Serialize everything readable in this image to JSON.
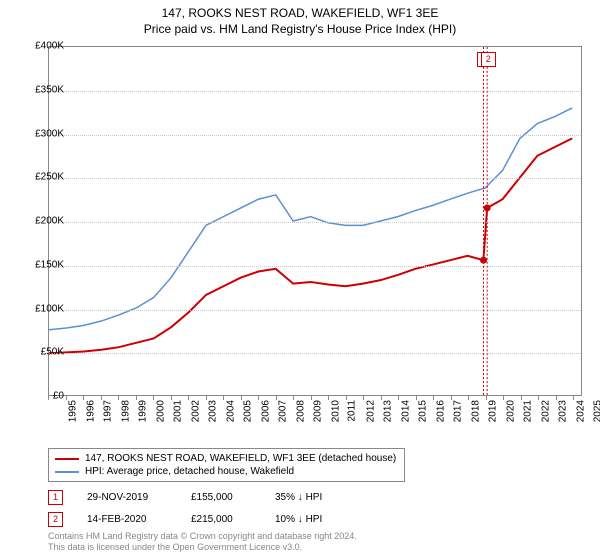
{
  "title_line1": "147, ROOKS NEST ROAD, WAKEFIELD, WF1 3EE",
  "title_line2": "Price paid vs. HM Land Registry's House Price Index (HPI)",
  "chart": {
    "type": "line",
    "background_color": "#ffffff",
    "grid_color": "#c8c8c8",
    "axis_color": "#888888",
    "label_fontsize": 10,
    "title_fontsize": 12,
    "xlim": [
      1995,
      2025.5
    ],
    "ylim": [
      0,
      400000
    ],
    "ytick_step": 50000,
    "yticks": [
      {
        "v": 0,
        "label": "£0"
      },
      {
        "v": 50000,
        "label": "£50K"
      },
      {
        "v": 100000,
        "label": "£100K"
      },
      {
        "v": 150000,
        "label": "£150K"
      },
      {
        "v": 200000,
        "label": "£200K"
      },
      {
        "v": 250000,
        "label": "£250K"
      },
      {
        "v": 300000,
        "label": "£300K"
      },
      {
        "v": 350000,
        "label": "£350K"
      },
      {
        "v": 400000,
        "label": "£400K"
      }
    ],
    "xticks": [
      1995,
      1996,
      1997,
      1998,
      1999,
      2000,
      2001,
      2002,
      2003,
      2004,
      2005,
      2006,
      2007,
      2008,
      2009,
      2010,
      2011,
      2012,
      2013,
      2014,
      2015,
      2016,
      2017,
      2018,
      2019,
      2020,
      2021,
      2022,
      2023,
      2024,
      2025
    ],
    "series": [
      {
        "name": "price_paid",
        "color": "#cc0000",
        "line_width": 2,
        "points": [
          [
            1995,
            48000
          ],
          [
            1996,
            49000
          ],
          [
            1997,
            50000
          ],
          [
            1998,
            52000
          ],
          [
            1999,
            55000
          ],
          [
            2000,
            60000
          ],
          [
            2001,
            65000
          ],
          [
            2002,
            78000
          ],
          [
            2003,
            95000
          ],
          [
            2004,
            115000
          ],
          [
            2005,
            125000
          ],
          [
            2006,
            135000
          ],
          [
            2007,
            142000
          ],
          [
            2008,
            145000
          ],
          [
            2009,
            128000
          ],
          [
            2010,
            130000
          ],
          [
            2011,
            127000
          ],
          [
            2012,
            125000
          ],
          [
            2013,
            128000
          ],
          [
            2014,
            132000
          ],
          [
            2015,
            138000
          ],
          [
            2016,
            145000
          ],
          [
            2017,
            150000
          ],
          [
            2018,
            155000
          ],
          [
            2019,
            160000
          ],
          [
            2019.9,
            155000
          ],
          [
            2020.12,
            215000
          ],
          [
            2021,
            225000
          ],
          [
            2022,
            250000
          ],
          [
            2023,
            275000
          ],
          [
            2024,
            285000
          ],
          [
            2025,
            295000
          ]
        ]
      },
      {
        "name": "hpi",
        "color": "#5b8fd6",
        "line_width": 1.5,
        "points": [
          [
            1995,
            75000
          ],
          [
            1996,
            77000
          ],
          [
            1997,
            80000
          ],
          [
            1998,
            85000
          ],
          [
            1999,
            92000
          ],
          [
            2000,
            100000
          ],
          [
            2001,
            112000
          ],
          [
            2002,
            135000
          ],
          [
            2003,
            165000
          ],
          [
            2004,
            195000
          ],
          [
            2005,
            205000
          ],
          [
            2006,
            215000
          ],
          [
            2007,
            225000
          ],
          [
            2008,
            230000
          ],
          [
            2009,
            200000
          ],
          [
            2010,
            205000
          ],
          [
            2011,
            198000
          ],
          [
            2012,
            195000
          ],
          [
            2013,
            195000
          ],
          [
            2014,
            200000
          ],
          [
            2015,
            205000
          ],
          [
            2016,
            212000
          ],
          [
            2017,
            218000
          ],
          [
            2018,
            225000
          ],
          [
            2019,
            232000
          ],
          [
            2020,
            238000
          ],
          [
            2021,
            258000
          ],
          [
            2022,
            295000
          ],
          [
            2023,
            312000
          ],
          [
            2024,
            320000
          ],
          [
            2025,
            330000
          ]
        ]
      }
    ],
    "sale_markers": [
      {
        "n": "1",
        "x": 2019.91,
        "y": 155000
      },
      {
        "n": "2",
        "x": 2020.12,
        "y": 215000
      }
    ],
    "marker_box_color": "#cc0000",
    "marker_vline_color": "#cc0000"
  },
  "legend": {
    "entries": [
      {
        "color": "#cc0000",
        "label": "147, ROOKS NEST ROAD, WAKEFIELD, WF1 3EE (detached house)"
      },
      {
        "color": "#5b8fd6",
        "label": "HPI: Average price, detached house, Wakefield"
      }
    ]
  },
  "sales": [
    {
      "n": "1",
      "date": "29-NOV-2019",
      "price": "£155,000",
      "delta": "35% ↓ HPI"
    },
    {
      "n": "2",
      "date": "14-FEB-2020",
      "price": "£215,000",
      "delta": "10% ↓ HPI"
    }
  ],
  "footer_line1": "Contains HM Land Registry data © Crown copyright and database right 2024.",
  "footer_line2": "This data is licensed under the Open Government Licence v3.0."
}
